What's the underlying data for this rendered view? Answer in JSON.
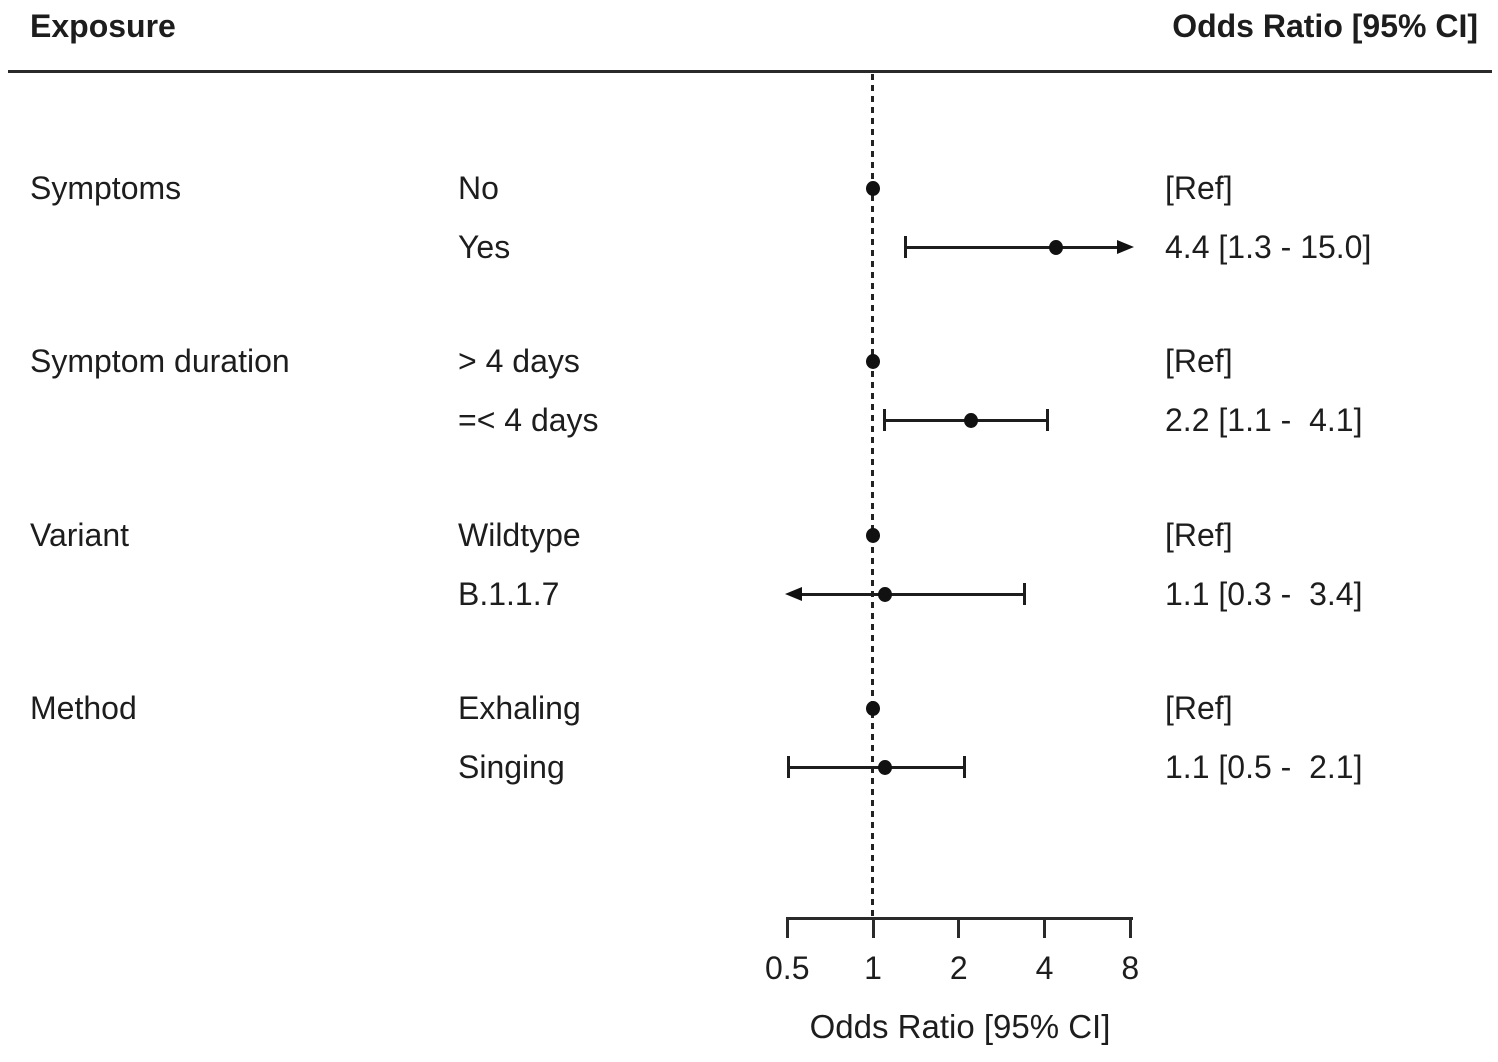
{
  "header": {
    "left": "Exposure",
    "right": "Odds Ratio [95% CI]"
  },
  "axis": {
    "label": "Odds Ratio [95% CI]",
    "tick_labels": [
      "0.5",
      "1",
      "2",
      "4",
      "8"
    ],
    "tick_values": [
      0.5,
      1,
      2,
      4,
      8
    ],
    "min": 0.5,
    "max": 8,
    "scale": "log2",
    "reference_line": 1
  },
  "colors": {
    "ink": "#1d1d1d",
    "background": "#ffffff"
  },
  "chart_data": {
    "type": "forest",
    "title": "",
    "xlabel": "Odds Ratio [95% CI]",
    "xscale": "log2",
    "xlim": [
      0.5,
      8
    ],
    "xticks": [
      0.5,
      1,
      2,
      4,
      8
    ],
    "reference_line": 1,
    "grid": false,
    "groups": [
      {
        "exposure": "Symptoms",
        "levels": [
          {
            "label": "No",
            "ref": true,
            "estimate_text": "[Ref]"
          },
          {
            "label": "Yes",
            "ref": false,
            "or": 4.4,
            "ci_low": 1.3,
            "ci_high": 15.0,
            "estimate_text": "4.4 [1.3 - 15.0]"
          }
        ]
      },
      {
        "exposure": "Symptom duration",
        "levels": [
          {
            "label": "> 4 days",
            "ref": true,
            "estimate_text": "[Ref]"
          },
          {
            "label": "=< 4 days",
            "ref": false,
            "or": 2.2,
            "ci_low": 1.1,
            "ci_high": 4.1,
            "estimate_text": "2.2 [1.1 -  4.1]"
          }
        ]
      },
      {
        "exposure": "Variant",
        "levels": [
          {
            "label": "Wildtype",
            "ref": true,
            "estimate_text": "[Ref]"
          },
          {
            "label": "B.1.1.7",
            "ref": false,
            "or": 1.1,
            "ci_low": 0.3,
            "ci_high": 3.4,
            "estimate_text": "1.1 [0.3 -  3.4]"
          }
        ]
      },
      {
        "exposure": "Method",
        "levels": [
          {
            "label": "Exhaling",
            "ref": true,
            "estimate_text": "[Ref]"
          },
          {
            "label": "Singing",
            "ref": false,
            "or": 1.1,
            "ci_low": 0.5,
            "ci_high": 2.1,
            "estimate_text": "1.1 [0.5 -  2.1]"
          }
        ]
      }
    ]
  }
}
